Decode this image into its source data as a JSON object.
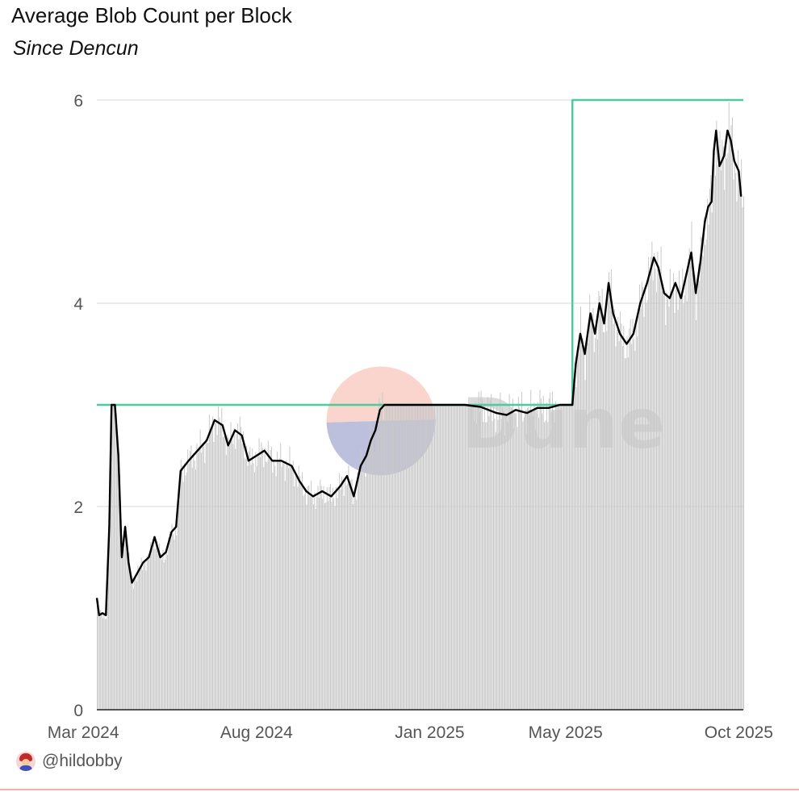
{
  "header": {
    "title": "Average Blob Count per Block",
    "subtitle": "Since Dencun"
  },
  "footer": {
    "username": "@hildobby",
    "avatar_icon": "user-avatar-icon"
  },
  "watermark": {
    "text": "Dune",
    "logo_icon": "dune-logo-icon"
  },
  "colors": {
    "average_line": "#000000",
    "daily_bars": "#c8c8c8",
    "target_line": "#4ecb9d",
    "grid": "#e6e6e6",
    "bottom_rule": "#f3b2a8"
  },
  "chart_data": {
    "type": "line",
    "title": "Average Blob Count per Block",
    "subtitle": "Since Dencun",
    "xlabel": "",
    "ylabel": "",
    "ylim": [
      0,
      6
    ],
    "xlim": [
      "2024-03-13",
      "2025-10-05"
    ],
    "yticks": [
      0,
      2,
      4,
      6
    ],
    "xticks": [
      {
        "date": "2024-03-01",
        "label": "Mar 2024"
      },
      {
        "date": "2024-08-01",
        "label": "Aug 2024"
      },
      {
        "date": "2025-01-01",
        "label": "Jan 2025"
      },
      {
        "date": "2025-05-01",
        "label": "May 2025"
      },
      {
        "date": "2025-10-01",
        "label": "Oct 2025"
      }
    ],
    "grid": true,
    "legend": "none",
    "series": [
      {
        "type": "line-step",
        "color": "#4ecb9d",
        "points": [
          [
            "2024-03-13",
            3
          ],
          [
            "2025-05-07",
            3
          ],
          [
            "2025-05-07",
            6
          ],
          [
            "2025-10-05",
            6
          ]
        ]
      },
      {
        "type": "line",
        "color": "#000000",
        "points": [
          [
            "2024-03-13",
            1.1
          ],
          [
            "2024-03-15",
            0.93
          ],
          [
            "2024-03-18",
            0.95
          ],
          [
            "2024-03-21",
            0.93
          ],
          [
            "2024-03-24",
            1.8
          ],
          [
            "2024-03-26",
            3.0
          ],
          [
            "2024-03-29",
            3.0
          ],
          [
            "2024-04-01",
            2.5
          ],
          [
            "2024-04-04",
            1.5
          ],
          [
            "2024-04-07",
            1.8
          ],
          [
            "2024-04-10",
            1.45
          ],
          [
            "2024-04-13",
            1.25
          ],
          [
            "2024-04-18",
            1.35
          ],
          [
            "2024-04-23",
            1.45
          ],
          [
            "2024-04-28",
            1.5
          ],
          [
            "2024-05-03",
            1.7
          ],
          [
            "2024-05-08",
            1.5
          ],
          [
            "2024-05-13",
            1.55
          ],
          [
            "2024-05-18",
            1.75
          ],
          [
            "2024-05-22",
            1.8
          ],
          [
            "2024-05-26",
            2.35
          ],
          [
            "2024-06-02",
            2.45
          ],
          [
            "2024-06-10",
            2.55
          ],
          [
            "2024-06-18",
            2.65
          ],
          [
            "2024-06-25",
            2.85
          ],
          [
            "2024-07-02",
            2.8
          ],
          [
            "2024-07-07",
            2.6
          ],
          [
            "2024-07-13",
            2.75
          ],
          [
            "2024-07-19",
            2.7
          ],
          [
            "2024-07-25",
            2.45
          ],
          [
            "2024-08-01",
            2.5
          ],
          [
            "2024-08-08",
            2.55
          ],
          [
            "2024-08-15",
            2.45
          ],
          [
            "2024-08-23",
            2.45
          ],
          [
            "2024-09-01",
            2.4
          ],
          [
            "2024-09-08",
            2.25
          ],
          [
            "2024-09-14",
            2.15
          ],
          [
            "2024-09-20",
            2.1
          ],
          [
            "2024-09-28",
            2.15
          ],
          [
            "2024-10-06",
            2.1
          ],
          [
            "2024-10-14",
            2.2
          ],
          [
            "2024-10-20",
            2.3
          ],
          [
            "2024-10-26",
            2.1
          ],
          [
            "2024-11-01",
            2.4
          ],
          [
            "2024-11-06",
            2.5
          ],
          [
            "2024-11-10",
            2.65
          ],
          [
            "2024-11-14",
            2.75
          ],
          [
            "2024-11-18",
            2.95
          ],
          [
            "2024-11-22",
            3.0
          ],
          [
            "2024-12-15",
            3.0
          ],
          [
            "2025-01-10",
            3.0
          ],
          [
            "2025-02-01",
            3.0
          ],
          [
            "2025-02-15",
            2.98
          ],
          [
            "2025-03-01",
            2.92
          ],
          [
            "2025-03-10",
            2.9
          ],
          [
            "2025-03-18",
            2.95
          ],
          [
            "2025-03-28",
            2.92
          ],
          [
            "2025-04-06",
            2.97
          ],
          [
            "2025-04-16",
            2.97
          ],
          [
            "2025-04-26",
            3.0
          ],
          [
            "2025-05-07",
            3.0
          ],
          [
            "2025-05-10",
            3.4
          ],
          [
            "2025-05-14",
            3.7
          ],
          [
            "2025-05-18",
            3.5
          ],
          [
            "2025-05-23",
            3.9
          ],
          [
            "2025-05-27",
            3.7
          ],
          [
            "2025-05-31",
            4.0
          ],
          [
            "2025-06-04",
            3.8
          ],
          [
            "2025-06-08",
            4.2
          ],
          [
            "2025-06-12",
            3.9
          ],
          [
            "2025-06-18",
            3.7
          ],
          [
            "2025-06-24",
            3.6
          ],
          [
            "2025-06-30",
            3.7
          ],
          [
            "2025-07-06",
            4.0
          ],
          [
            "2025-07-12",
            4.2
          ],
          [
            "2025-07-18",
            4.45
          ],
          [
            "2025-07-22",
            4.35
          ],
          [
            "2025-07-27",
            4.1
          ],
          [
            "2025-08-01",
            4.05
          ],
          [
            "2025-08-06",
            4.2
          ],
          [
            "2025-08-11",
            4.05
          ],
          [
            "2025-08-16",
            4.3
          ],
          [
            "2025-08-20",
            4.5
          ],
          [
            "2025-08-24",
            4.1
          ],
          [
            "2025-08-28",
            4.4
          ],
          [
            "2025-09-01",
            4.8
          ],
          [
            "2025-09-04",
            4.95
          ],
          [
            "2025-09-07",
            5.0
          ],
          [
            "2025-09-09",
            5.5
          ],
          [
            "2025-09-11",
            5.7
          ],
          [
            "2025-09-14",
            5.35
          ],
          [
            "2025-09-18",
            5.45
          ],
          [
            "2025-09-21",
            5.7
          ],
          [
            "2025-09-24",
            5.6
          ],
          [
            "2025-09-27",
            5.4
          ],
          [
            "2025-10-01",
            5.3
          ],
          [
            "2025-10-03",
            5.05
          ]
        ]
      }
    ]
  }
}
